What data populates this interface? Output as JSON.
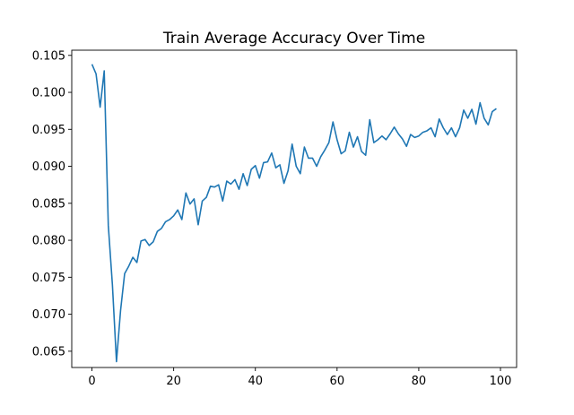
{
  "chart_data": {
    "type": "line",
    "title": "Train Average Accuracy Over Time",
    "xlabel": "",
    "ylabel": "",
    "xlim": [
      -4.95,
      103.95
    ],
    "ylim": [
      0.0628,
      0.1057
    ],
    "xticks": [
      0,
      20,
      40,
      60,
      80,
      100
    ],
    "xtick_labels": [
      "0",
      "20",
      "40",
      "60",
      "80",
      "100"
    ],
    "yticks": [
      0.065,
      0.07,
      0.075,
      0.08,
      0.085,
      0.09,
      0.095,
      0.1,
      0.105
    ],
    "ytick_labels": [
      "0.065",
      "0.070",
      "0.075",
      "0.080",
      "0.085",
      "0.090",
      "0.095",
      "0.100",
      "0.105"
    ],
    "grid": false,
    "legend": "none",
    "series": [
      {
        "color": "#1f77b4",
        "x": [
          0,
          1,
          2,
          3,
          4,
          5,
          6,
          7,
          8,
          9,
          10,
          11,
          12,
          13,
          14,
          15,
          16,
          17,
          18,
          19,
          20,
          21,
          22,
          23,
          24,
          25,
          26,
          27,
          28,
          29,
          30,
          31,
          32,
          33,
          34,
          35,
          36,
          37,
          38,
          39,
          40,
          41,
          42,
          43,
          44,
          45,
          46,
          47,
          48,
          49,
          50,
          51,
          52,
          53,
          54,
          55,
          56,
          57,
          58,
          59,
          60,
          61,
          62,
          63,
          64,
          65,
          66,
          67,
          68,
          69,
          70,
          71,
          72,
          73,
          74,
          75,
          76,
          77,
          78,
          79,
          80,
          81,
          82,
          83,
          84,
          85,
          86,
          87,
          88,
          89,
          90,
          91,
          92,
          93,
          94,
          95,
          96,
          97,
          98,
          99
        ],
        "values": [
          0.1038,
          0.1025,
          0.098,
          0.1029,
          0.082,
          0.074,
          0.0636,
          0.0705,
          0.0755,
          0.0765,
          0.0777,
          0.077,
          0.0799,
          0.0801,
          0.0793,
          0.0798,
          0.0812,
          0.0816,
          0.0825,
          0.0828,
          0.0833,
          0.0841,
          0.0828,
          0.0864,
          0.0849,
          0.0856,
          0.0821,
          0.0853,
          0.0858,
          0.0873,
          0.0872,
          0.0875,
          0.0853,
          0.088,
          0.0876,
          0.0882,
          0.0869,
          0.089,
          0.0874,
          0.0896,
          0.0901,
          0.0884,
          0.0905,
          0.0906,
          0.0918,
          0.0898,
          0.0902,
          0.0877,
          0.0894,
          0.093,
          0.09,
          0.089,
          0.0926,
          0.0911,
          0.0911,
          0.09,
          0.0913,
          0.0922,
          0.0932,
          0.096,
          0.0936,
          0.0917,
          0.0921,
          0.0946,
          0.0926,
          0.094,
          0.092,
          0.0915,
          0.0963,
          0.0932,
          0.0936,
          0.0941,
          0.0936,
          0.0944,
          0.0953,
          0.0944,
          0.0937,
          0.0927,
          0.0943,
          0.0939,
          0.0941,
          0.0946,
          0.0948,
          0.0952,
          0.094,
          0.0964,
          0.0952,
          0.0943,
          0.0952,
          0.094,
          0.0952,
          0.0976,
          0.0965,
          0.0977,
          0.0957,
          0.0986,
          0.0965,
          0.0956,
          0.0974,
          0.0978
        ]
      }
    ]
  }
}
